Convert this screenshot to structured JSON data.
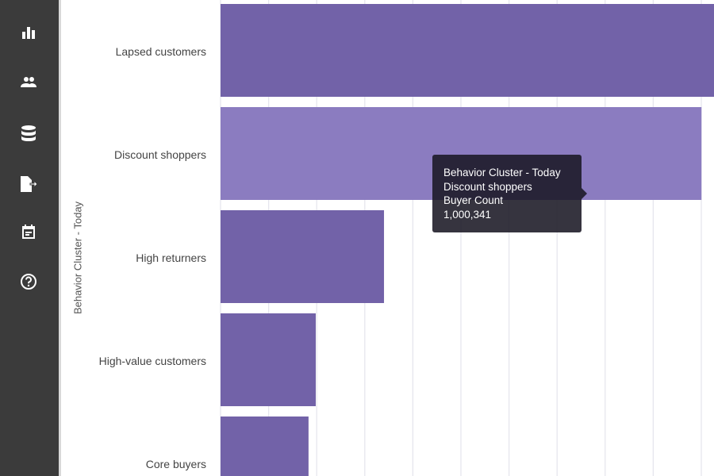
{
  "sidebar": {
    "items": [
      {
        "icon": "bar-chart-icon"
      },
      {
        "icon": "people-icon"
      },
      {
        "icon": "database-icon"
      },
      {
        "icon": "export-file-icon"
      },
      {
        "icon": "calendar-icon"
      },
      {
        "icon": "help-icon"
      }
    ]
  },
  "tooltip": {
    "dimension": "Behavior Cluster - Today",
    "category": "Discount shoppers",
    "measure": "Buyer Count",
    "value": "1,000,341"
  },
  "chart_data": {
    "type": "bar",
    "orientation": "horizontal",
    "ylabel": "Behavior Cluster - Today",
    "xlabel": "",
    "categories": [
      "Lapsed customers",
      "Discount shoppers",
      "High returners",
      "High-value customers",
      "Core buyers"
    ],
    "values": [
      1035000,
      1000341,
      340000,
      198000,
      183000
    ],
    "xlim": [
      0,
      1030000
    ],
    "grid": true,
    "highlighted": "Discount shoppers",
    "colors": {
      "bar": "#7262a8",
      "highlight": "#8b7cc0",
      "grid": "#e6e6ee"
    }
  }
}
